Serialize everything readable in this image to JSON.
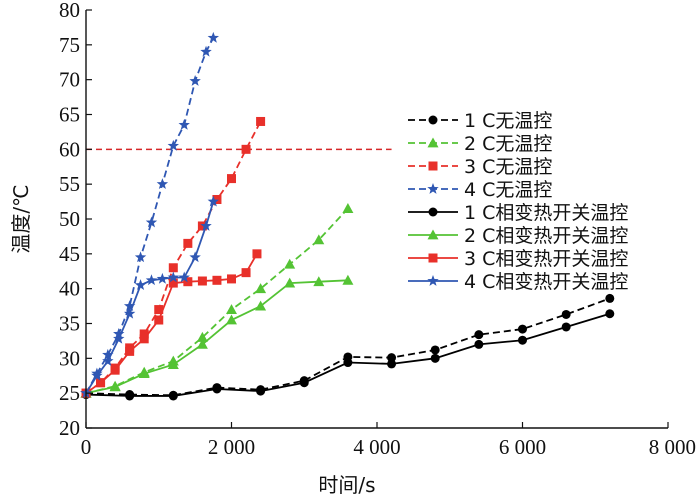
{
  "chart_data": {
    "type": "line",
    "xlabel": "时间/s",
    "ylabel": "温度/℃",
    "xlim": [
      0,
      8000
    ],
    "ylim": [
      20,
      80
    ],
    "xticks": [
      0,
      2000,
      4000,
      6000,
      8000
    ],
    "xtick_labels": [
      "0",
      "2 000",
      "4 000",
      "6 000",
      "8 000"
    ],
    "yticks": [
      20,
      25,
      30,
      35,
      40,
      45,
      50,
      55,
      60,
      65,
      70,
      75,
      80
    ],
    "ytick_labels": [
      "20",
      "25",
      "30",
      "35",
      "40",
      "45",
      "50",
      "55",
      "60",
      "65",
      "70",
      "75",
      "80"
    ],
    "legend_position": "right",
    "reference_lines": [
      {
        "y": 60,
        "x_range": [
          0,
          4200
        ],
        "color": "#d62728",
        "style": "dashed"
      }
    ],
    "series": [
      {
        "name": "1 C无温控",
        "color": "#000000",
        "style": "dashed",
        "marker": "circle",
        "x": [
          0,
          600,
          1200,
          1800,
          2400,
          3000,
          3600,
          4200,
          4800,
          5400,
          6000,
          6600,
          7200
        ],
        "y": [
          25,
          24.8,
          24.7,
          25.8,
          25.5,
          26.8,
          30.2,
          30.1,
          31.2,
          33.4,
          34.2,
          36.3,
          38.6
        ]
      },
      {
        "name": "2 C无温控",
        "color": "#54c334",
        "style": "dashed",
        "marker": "triangle",
        "x": [
          0,
          400,
          800,
          1200,
          1600,
          2000,
          2400,
          2800,
          3200,
          3600
        ],
        "y": [
          25,
          26,
          28,
          29.6,
          33,
          37,
          40,
          43.5,
          47,
          51.5
        ]
      },
      {
        "name": "3 C无温控",
        "color": "#e8302a",
        "style": "dashed",
        "marker": "square",
        "x": [
          0,
          200,
          400,
          600,
          800,
          1000,
          1200,
          1400,
          1600,
          1800,
          2000,
          2200,
          2400
        ],
        "y": [
          25,
          26.5,
          28.6,
          31.5,
          33.5,
          37,
          43,
          46.5,
          49,
          52.8,
          55.8,
          60,
          64
        ]
      },
      {
        "name": "4 C无温控",
        "color": "#2f57b3",
        "style": "dashed",
        "marker": "star",
        "x": [
          0,
          150,
          300,
          450,
          600,
          750,
          900,
          1050,
          1200,
          1350,
          1500,
          1650,
          1750
        ],
        "y": [
          25,
          27.8,
          30.5,
          33.5,
          37.5,
          44.5,
          49.5,
          55,
          60.5,
          63.5,
          69.8,
          74,
          76
        ]
      },
      {
        "name": "1 C相变热开关温控",
        "color": "#000000",
        "style": "solid",
        "marker": "circle",
        "x": [
          0,
          600,
          1200,
          1800,
          2400,
          3000,
          3600,
          4200,
          4800,
          5400,
          6000,
          6600,
          7200
        ],
        "y": [
          24.8,
          24.6,
          24.6,
          25.6,
          25.3,
          26.5,
          29.4,
          29.2,
          30,
          32,
          32.6,
          34.5,
          36.4
        ]
      },
      {
        "name": "2 C相变热开关温控",
        "color": "#54c334",
        "style": "solid",
        "marker": "triangle",
        "x": [
          0,
          400,
          800,
          1200,
          1600,
          2000,
          2400,
          2800,
          3200,
          3600
        ],
        "y": [
          25,
          25.9,
          27.8,
          29.1,
          32,
          35.5,
          37.5,
          40.8,
          41,
          41.2
        ]
      },
      {
        "name": "3 C相变热开关温控",
        "color": "#e8302a",
        "style": "solid",
        "marker": "square",
        "x": [
          0,
          200,
          400,
          600,
          800,
          1000,
          1200,
          1400,
          1600,
          1800,
          2000,
          2200,
          2350
        ],
        "y": [
          25,
          26.5,
          28.3,
          31,
          32.8,
          35.5,
          40.8,
          41,
          41.1,
          41.2,
          41.4,
          42.3,
          45
        ]
      },
      {
        "name": "4 C相变热开关温控",
        "color": "#2f57b3",
        "style": "solid",
        "marker": "star",
        "x": [
          0,
          150,
          300,
          450,
          600,
          750,
          900,
          1050,
          1200,
          1350,
          1500,
          1650,
          1750
        ],
        "y": [
          25,
          27.5,
          29.6,
          32.8,
          36.4,
          40.5,
          41.2,
          41.4,
          41.6,
          41.6,
          44.5,
          49,
          52.5
        ]
      }
    ]
  }
}
